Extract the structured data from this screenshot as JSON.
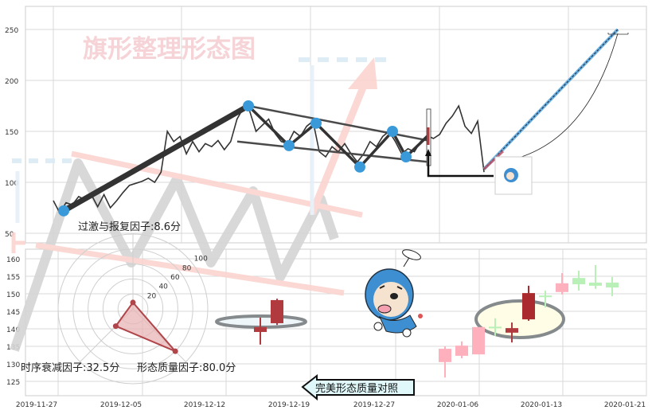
{
  "chart_data": [
    {
      "type": "line",
      "title": "旗形整理形态图",
      "ylim": [
        40,
        270
      ],
      "yticks": [
        "250",
        "200",
        "150",
        "100",
        "50"
      ],
      "grid": true,
      "price": [
        82,
        70,
        80,
        78,
        86,
        83,
        88,
        76,
        88,
        75,
        82,
        90,
        97,
        99,
        101,
        104,
        100,
        110,
        150,
        140,
        145,
        128,
        140,
        130,
        138,
        135,
        141,
        132,
        140,
        162,
        173,
        170,
        150,
        156,
        162,
        148,
        140,
        138,
        150,
        145,
        155,
        160,
        130,
        125,
        135,
        130,
        138,
        128,
        120,
        128,
        140,
        135,
        145,
        150,
        140,
        128,
        133,
        130,
        140,
        146,
        143,
        147,
        158,
        165,
        175,
        155,
        148,
        160,
        110
      ],
      "pattern_points": [
        72,
        175,
        136,
        158,
        115,
        150,
        125
      ],
      "flagpole": [
        72,
        175
      ],
      "channel_upper": [
        175,
        141
      ],
      "channel_lower": [
        140,
        120
      ],
      "forecast": [
        113,
        250
      ],
      "colors": {
        "price": "#333333",
        "pivot": "#3a9ad9",
        "forecast": "#6ab0e0",
        "title": "#f4c4c8"
      }
    },
    {
      "type": "candlestick",
      "ylim": [
        121,
        163
      ],
      "yticks": [
        "160",
        "155",
        "150",
        "145",
        "140",
        "135",
        "130",
        "125"
      ],
      "xticks": [
        "2019-11-27",
        "2019-12-05",
        "2019-12-12",
        "2019-12-19",
        "2019-12-27",
        "2020-01-06",
        "2020-01-13",
        "2020-01-21"
      ],
      "grid": true,
      "candles_left": [
        {
          "o": 140.5,
          "h": 143.2,
          "l": 135.5,
          "c": 139.1,
          "color": "#b03a3e"
        },
        {
          "o": 141.6,
          "h": 148.6,
          "l": 141.1,
          "c": 148.2,
          "color": "#b03a3e"
        }
      ],
      "candles_right": [
        {
          "o": 130.5,
          "h": 135.0,
          "l": 126.1,
          "c": 134.3,
          "color": "#ffb0bd"
        },
        {
          "o": 132.3,
          "h": 136.4,
          "l": 131.6,
          "c": 135.2,
          "color": "#ffb0bd"
        },
        {
          "o": 132.7,
          "h": 140.5,
          "l": 132.7,
          "c": 140.5,
          "color": "#ffb0bd"
        },
        {
          "o": 140.6,
          "h": 143.0,
          "l": 138.0,
          "c": 140.4,
          "color": "#b8f0b8"
        },
        {
          "o": 138.9,
          "h": 141.8,
          "l": 136.1,
          "c": 140.2,
          "color": "#b03a3e"
        },
        {
          "o": 142.7,
          "h": 152.3,
          "l": 142.3,
          "c": 150.2,
          "color": "#aa2a2e"
        },
        {
          "o": 149.5,
          "h": 150.9,
          "l": 146.1,
          "c": 149.1,
          "color": "#b8f0b8"
        },
        {
          "o": 150.5,
          "h": 155.9,
          "l": 149.8,
          "c": 153.0,
          "color": "#ffb0bd"
        },
        {
          "o": 154.5,
          "h": 156.6,
          "l": 150.9,
          "c": 152.7,
          "color": "#b8f0b8"
        },
        {
          "o": 153.2,
          "h": 158.2,
          "l": 151.4,
          "c": 152.3,
          "color": "#b8f0b8"
        },
        {
          "o": 153.2,
          "h": 154.8,
          "l": 149.3,
          "c": 151.8,
          "color": "#b8f0b8"
        }
      ]
    },
    {
      "type": "radar",
      "rticks": [
        "20",
        "40",
        "60",
        "80",
        "100"
      ],
      "rmax": 100,
      "factors": [
        {
          "label": "过激与报复因子:8.6分",
          "value": 8.6
        },
        {
          "label": "时序衰减因子:32.5分",
          "value": 32.5
        },
        {
          "label": "形态质量因子:80.0分",
          "value": 80.0
        }
      ],
      "colors": {
        "fill": "#e8b4b6",
        "stroke": "#b0454a"
      }
    }
  ],
  "callout": {
    "label": "完美形态质量对照"
  }
}
